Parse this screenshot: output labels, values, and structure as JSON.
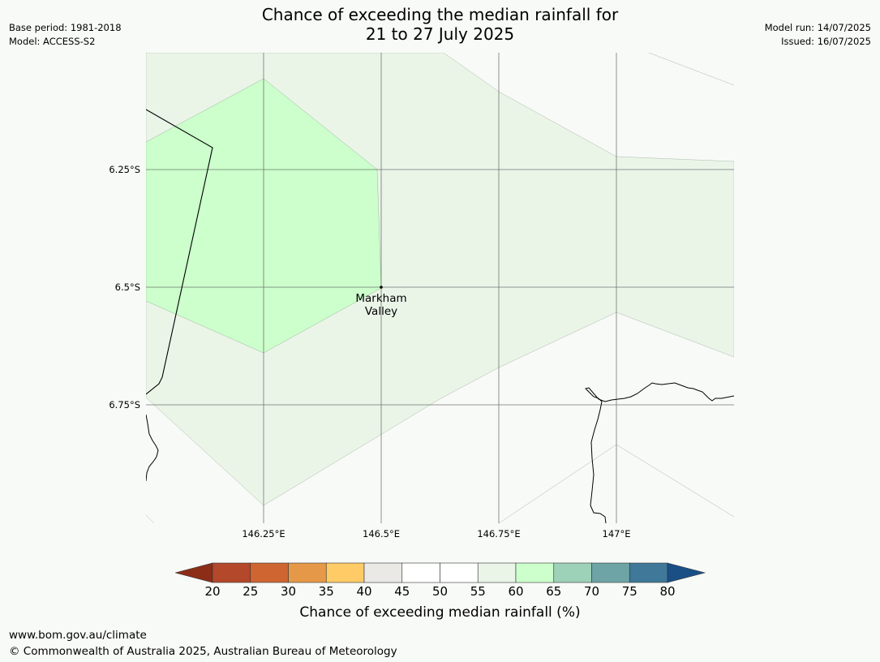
{
  "title_line1": "Chance of exceeding the median rainfall for",
  "title_line2": "21 to 27 July 2025",
  "meta_left": {
    "base_period": "Base period: 1981-2018",
    "model": "Model: ACCESS-S2"
  },
  "meta_right": {
    "model_run": "Model run: 14/07/2025",
    "issued": "Issued: 16/07/2025"
  },
  "lat_labels": [
    "6.25°S",
    "6.5°S",
    "6.75°S"
  ],
  "lon_labels": [
    "146.25°E",
    "146.5°E",
    "146.75°E",
    "147°E"
  ],
  "place": {
    "line1": "Markham",
    "line2": "Valley"
  },
  "colorbar": {
    "ticks": [
      "20",
      "25",
      "30",
      "35",
      "40",
      "45",
      "50",
      "55",
      "60",
      "65",
      "70",
      "75",
      "80"
    ],
    "label": "Chance of exceeding median rainfall (%)",
    "colors": [
      "#8b2d17",
      "#b4482a",
      "#cf6631",
      "#e59948",
      "#fecb66",
      "#ebe9e6",
      "#ffffff",
      "#ffffff",
      "#eaf5e8",
      "#ccffcc",
      "#9dd1b8",
      "#6ea4a6",
      "#3f7899",
      "#1a4f86"
    ]
  },
  "map_categories": [
    {
      "range": "60-65",
      "color": "#ccffcc"
    },
    {
      "range": "55-60",
      "color": "#eaf5e8"
    }
  ],
  "footer": {
    "url": "www.bom.gov.au/climate",
    "copyright": "© Commonwealth of Australia 2025, Australian Bureau of Meteorology"
  }
}
